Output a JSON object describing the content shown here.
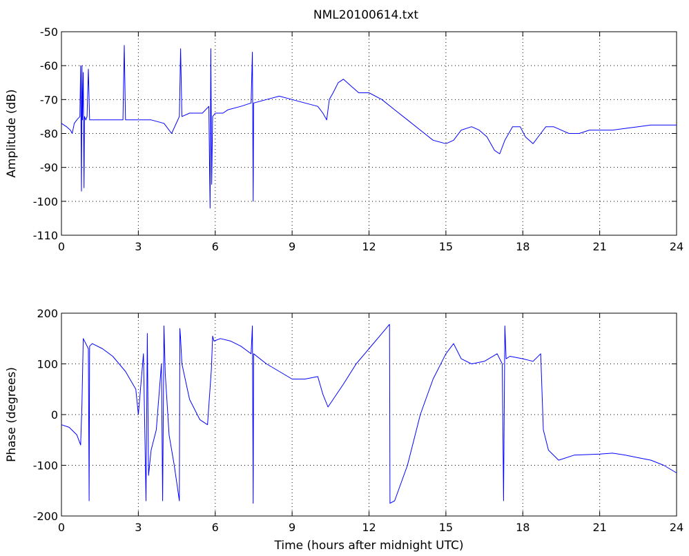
{
  "figure": {
    "title": "NML20100614.txt"
  },
  "chart_data": [
    {
      "type": "line",
      "title": "NML20100614.txt",
      "xlabel": "",
      "ylabel": "Amplitude (dB)",
      "xlim": [
        0,
        24
      ],
      "ylim": [
        -110,
        -50
      ],
      "xticks": [
        0,
        3,
        6,
        9,
        12,
        15,
        18,
        21,
        24
      ],
      "yticks": [
        -110,
        -100,
        -90,
        -80,
        -70,
        -60,
        -50
      ],
      "grid": true,
      "color": "#0000ff",
      "series": [
        {
          "x": [
            0,
            0.2,
            0.35,
            0.42,
            0.5,
            0.6,
            0.72,
            0.75,
            0.78,
            0.8,
            0.82,
            0.85,
            0.88,
            0.9,
            0.95,
            1.0,
            1.05,
            1.1,
            1.2,
            1.5,
            2.0,
            2.4,
            2.45,
            2.5,
            3.0,
            3.5,
            4.0,
            4.3,
            4.6,
            4.65,
            4.7,
            5.0,
            5.5,
            5.75,
            5.8,
            5.83,
            5.86,
            5.9,
            6.0,
            6.3,
            6.5,
            7.0,
            7.4,
            7.45,
            7.48,
            7.5,
            8.0,
            8.5,
            9.0,
            9.5,
            10.0,
            10.2,
            10.35,
            10.45,
            10.6,
            10.8,
            11.0,
            11.3,
            11.6,
            12.0,
            12.5,
            13.0,
            13.5,
            14.0,
            14.5,
            15.0,
            15.3,
            15.6,
            16.0,
            16.3,
            16.6,
            16.9,
            17.1,
            17.3,
            17.6,
            17.9,
            18.1,
            18.4,
            18.7,
            18.9,
            19.2,
            19.5,
            19.8,
            20.2,
            20.6,
            21.0,
            21.5,
            22.0,
            22.5,
            23.0,
            23.5,
            24.0
          ],
          "y": [
            -77,
            -78,
            -79,
            -80,
            -77,
            -76,
            -75,
            -60,
            -97,
            -60,
            -76,
            -62,
            -96,
            -75,
            -76,
            -75,
            -61,
            -76,
            -76,
            -76,
            -76,
            -76,
            -54,
            -76,
            -76,
            -76,
            -77,
            -80,
            -75,
            -55,
            -75,
            -74,
            -74,
            -72,
            -102,
            -55,
            -95,
            -75,
            -74,
            -74,
            -73,
            -72,
            -71,
            -56,
            -100,
            -71,
            -70,
            -69,
            -70,
            -71,
            -72,
            -74,
            -76,
            -70,
            -68,
            -65,
            -64,
            -66,
            -68,
            -68,
            -70,
            -73,
            -76,
            -79,
            -82,
            -83,
            -82,
            -79,
            -78,
            -79,
            -81,
            -85,
            -86,
            -82,
            -78,
            -78,
            -81,
            -83,
            -80,
            -78,
            -78,
            -79,
            -80,
            -80,
            -79,
            -79,
            -79,
            -78.5,
            -78,
            -77.5,
            -77.5,
            -77.5
          ]
        }
      ]
    },
    {
      "type": "line",
      "title": "",
      "xlabel": "Time (hours after midnight UTC)",
      "ylabel": "Phase (degrees)",
      "xlim": [
        0,
        24
      ],
      "ylim": [
        -200,
        200
      ],
      "xticks": [
        0,
        3,
        6,
        9,
        12,
        15,
        18,
        21,
        24
      ],
      "yticks": [
        -200,
        -100,
        0,
        100,
        200
      ],
      "grid": true,
      "color": "#0000ff",
      "series": [
        {
          "x": [
            0,
            0.3,
            0.6,
            0.75,
            0.8,
            0.85,
            0.95,
            1.05,
            1.08,
            1.1,
            1.2,
            1.6,
            2.0,
            2.5,
            2.9,
            3.0,
            3.2,
            3.3,
            3.35,
            3.4,
            3.5,
            3.7,
            3.9,
            3.95,
            4.0,
            4.05,
            4.2,
            4.4,
            4.6,
            4.62,
            4.65,
            4.7,
            5.0,
            5.4,
            5.7,
            5.85,
            5.9,
            5.95,
            6.2,
            6.6,
            7.0,
            7.4,
            7.45,
            7.48,
            7.5,
            8.0,
            8.5,
            9.0,
            9.5,
            10.0,
            10.2,
            10.4,
            10.6,
            11.0,
            11.5,
            12.0,
            12.5,
            12.8,
            12.82,
            13.0,
            13.5,
            14.0,
            14.5,
            15.0,
            15.3,
            15.6,
            16.0,
            16.5,
            17.0,
            17.2,
            17.25,
            17.3,
            17.35,
            17.5,
            18.0,
            18.4,
            18.7,
            18.8,
            19.0,
            19.4,
            20.0,
            21.0,
            21.5,
            22.0,
            22.5,
            23.0,
            23.5,
            24.0
          ],
          "y": [
            -20,
            -25,
            -40,
            -60,
            20,
            150,
            140,
            130,
            -170,
            135,
            140,
            130,
            115,
            85,
            50,
            0,
            120,
            -170,
            160,
            -120,
            -70,
            -30,
            100,
            -170,
            175,
            80,
            -40,
            -100,
            -170,
            170,
            150,
            100,
            30,
            -10,
            -20,
            90,
            155,
            145,
            150,
            145,
            135,
            120,
            175,
            -175,
            120,
            100,
            85,
            70,
            70,
            75,
            40,
            15,
            30,
            60,
            100,
            130,
            160,
            178,
            -175,
            -170,
            -100,
            0,
            70,
            120,
            140,
            110,
            100,
            105,
            120,
            100,
            -170,
            175,
            110,
            115,
            110,
            105,
            120,
            -30,
            -70,
            -90,
            -80,
            -78,
            -76,
            -80,
            -85,
            -90,
            -100,
            -115
          ]
        }
      ]
    }
  ]
}
